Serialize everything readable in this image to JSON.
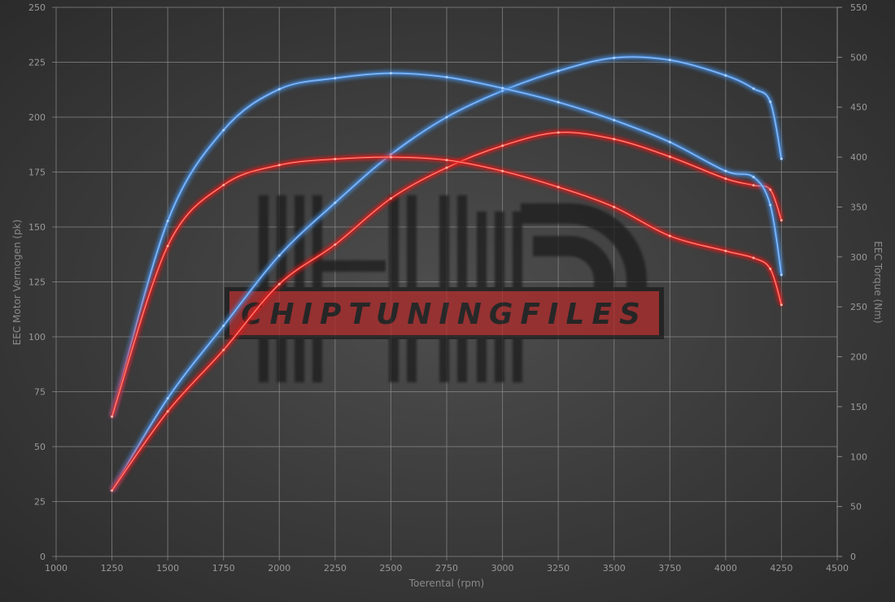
{
  "chart_data": {
    "type": "line",
    "title": "",
    "xlabel": "Toerental (rpm)",
    "ylabel_left": "EEC Motor Vermogen (pk)",
    "ylabel_right": "EEC Torque (Nm)",
    "xlim": [
      1000,
      4500
    ],
    "ylim_left": [
      0,
      250
    ],
    "ylim_right": [
      0,
      550
    ],
    "x_ticks": [
      1000,
      1250,
      1500,
      1750,
      2000,
      2250,
      2500,
      2750,
      3000,
      3250,
      3500,
      3750,
      4000,
      4250,
      4500
    ],
    "y_left_ticks": [
      0,
      25,
      50,
      75,
      100,
      125,
      150,
      175,
      200,
      225,
      250
    ],
    "y_right_ticks": [
      0,
      50,
      100,
      150,
      200,
      250,
      300,
      350,
      400,
      450,
      500,
      550
    ],
    "grid": true,
    "x": [
      1250,
      1500,
      1750,
      2000,
      2250,
      2500,
      2750,
      3000,
      3250,
      3500,
      3750,
      4000,
      4125,
      4200,
      4250
    ],
    "series": [
      {
        "axis": "left",
        "color": "#4a90e2",
        "values": [
          30,
          72,
          105,
          137,
          161,
          183,
          200,
          212,
          221,
          227,
          226,
          219,
          213,
          207,
          181
        ]
      },
      {
        "axis": "left",
        "color": "#e82020",
        "values": [
          30,
          66,
          94,
          124,
          142,
          163,
          177,
          187,
          193,
          190,
          182,
          172,
          169,
          167,
          153
        ]
      },
      {
        "axis": "right",
        "color": "#4a90e2",
        "values": [
          140,
          336,
          427,
          468,
          479,
          484,
          480,
          469,
          455,
          437,
          415,
          386,
          380,
          352,
          282
        ]
      },
      {
        "axis": "right",
        "color": "#e82020",
        "values": [
          140,
          311,
          372,
          392,
          398,
          400,
          397,
          386,
          370,
          350,
          321,
          306,
          299,
          288,
          252
        ]
      }
    ]
  },
  "watermark": {
    "text": "CHIPTUNINGFILES",
    "color": "#b02a2a"
  }
}
